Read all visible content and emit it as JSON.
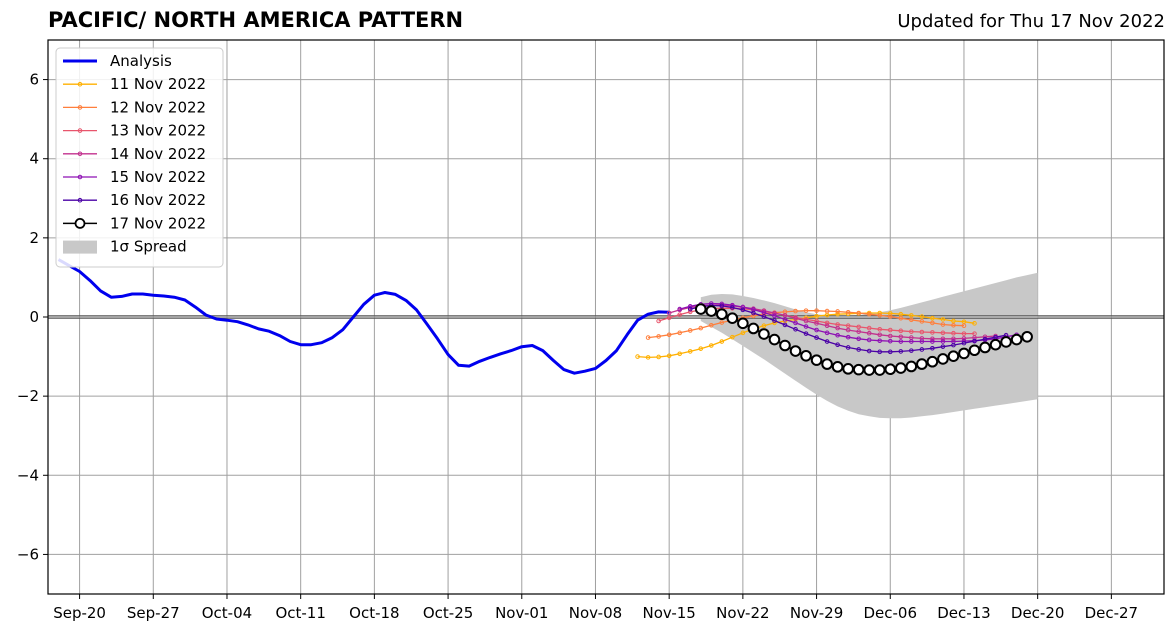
{
  "title": "PACIFIC/ NORTH AMERICA PATTERN",
  "subtitle": "Updated for Thu 17 Nov 2022",
  "chart_data": {
    "type": "line",
    "x_axis": {
      "type": "date",
      "range": [
        "2022-09-17",
        "2023-01-01"
      ],
      "ticks": [
        {
          "date": "2022-09-20",
          "label": "Sep-20"
        },
        {
          "date": "2022-09-27",
          "label": "Sep-27"
        },
        {
          "date": "2022-10-04",
          "label": "Oct-04"
        },
        {
          "date": "2022-10-11",
          "label": "Oct-11"
        },
        {
          "date": "2022-10-18",
          "label": "Oct-18"
        },
        {
          "date": "2022-10-25",
          "label": "Oct-25"
        },
        {
          "date": "2022-11-01",
          "label": "Nov-01"
        },
        {
          "date": "2022-11-08",
          "label": "Nov-08"
        },
        {
          "date": "2022-11-15",
          "label": "Nov-15"
        },
        {
          "date": "2022-11-22",
          "label": "Nov-22"
        },
        {
          "date": "2022-11-29",
          "label": "Nov-29"
        },
        {
          "date": "2022-12-06",
          "label": "Dec-06"
        },
        {
          "date": "2022-12-13",
          "label": "Dec-13"
        },
        {
          "date": "2022-12-20",
          "label": "Dec-20"
        },
        {
          "date": "2022-12-27",
          "label": "Dec-27"
        }
      ]
    },
    "y_axis": {
      "range": [
        -7,
        7
      ],
      "ticks": [
        {
          "value": 6,
          "label": "6"
        },
        {
          "value": 4,
          "label": "4"
        },
        {
          "value": 2,
          "label": "2"
        },
        {
          "value": 0,
          "label": "0"
        },
        {
          "value": -2,
          "label": "−2"
        },
        {
          "value": -4,
          "label": "−4"
        },
        {
          "value": -6,
          "label": "−6"
        }
      ]
    },
    "grid": true,
    "zero_line": true,
    "legend_position": "top-left",
    "analysis": {
      "name": "Analysis",
      "color": "#0000ee",
      "start_date": "2022-09-18",
      "values": [
        1.45,
        1.3,
        1.15,
        0.92,
        0.66,
        0.5,
        0.52,
        0.58,
        0.58,
        0.55,
        0.53,
        0.5,
        0.43,
        0.25,
        0.05,
        -0.05,
        -0.08,
        -0.12,
        -0.2,
        -0.3,
        -0.36,
        -0.47,
        -0.62,
        -0.7,
        -0.7,
        -0.65,
        -0.52,
        -0.32,
        0.0,
        0.32,
        0.55,
        0.62,
        0.57,
        0.42,
        0.18,
        -0.18,
        -0.55,
        -0.95,
        -1.22,
        -1.24,
        -1.12,
        -1.02,
        -0.93,
        -0.85,
        -0.75,
        -0.72,
        -0.85,
        -1.1,
        -1.33,
        -1.42,
        -1.37,
        -1.3,
        -1.1,
        -0.85,
        -0.45,
        -0.08,
        0.07,
        0.13,
        0.12
      ]
    },
    "forecasts": [
      {
        "name": "11 Nov 2022",
        "color": "#ffb000",
        "start_date": "2022-11-12",
        "values": [
          -1.0,
          -1.02,
          -1.01,
          -0.98,
          -0.93,
          -0.87,
          -0.8,
          -0.72,
          -0.62,
          -0.51,
          -0.4,
          -0.3,
          -0.22,
          -0.15,
          -0.1,
          -0.06,
          -0.02,
          0.02,
          0.05,
          0.07,
          0.08,
          0.09,
          0.1,
          0.1,
          0.09,
          0.07,
          0.04,
          0.01,
          -0.03,
          -0.06,
          -0.1,
          -0.12,
          -0.16
        ]
      },
      {
        "name": "12 Nov 2022",
        "color": "#ff7f3c",
        "start_date": "2022-11-13",
        "values": [
          -0.52,
          -0.49,
          -0.45,
          -0.4,
          -0.34,
          -0.28,
          -0.21,
          -0.14,
          -0.08,
          -0.02,
          0.03,
          0.07,
          0.11,
          0.13,
          0.15,
          0.16,
          0.16,
          0.15,
          0.14,
          0.12,
          0.1,
          0.07,
          0.04,
          0.01,
          -0.03,
          -0.07,
          -0.11,
          -0.15,
          -0.19,
          -0.21,
          -0.22
        ]
      },
      {
        "name": "13 Nov 2022",
        "color": "#e8556c",
        "start_date": "2022-11-14",
        "values": [
          -0.1,
          -0.02,
          0.06,
          0.13,
          0.18,
          0.21,
          0.22,
          0.22,
          0.21,
          0.18,
          0.14,
          0.09,
          0.04,
          -0.01,
          -0.06,
          -0.1,
          -0.15,
          -0.19,
          -0.22,
          -0.25,
          -0.28,
          -0.31,
          -0.33,
          -0.35,
          -0.37,
          -0.38,
          -0.39,
          -0.4,
          -0.41,
          -0.42,
          -0.42
        ]
      },
      {
        "name": "14 Nov 2022",
        "color": "#c2318e",
        "start_date": "2022-11-15",
        "values": [
          0.1,
          0.18,
          0.24,
          0.28,
          0.3,
          0.3,
          0.28,
          0.25,
          0.21,
          0.16,
          0.1,
          0.04,
          -0.03,
          -0.1,
          -0.16,
          -0.22,
          -0.28,
          -0.33,
          -0.37,
          -0.41,
          -0.45,
          -0.48,
          -0.5,
          -0.52,
          -0.54,
          -0.55,
          -0.55,
          -0.55,
          -0.54,
          -0.52,
          -0.5,
          -0.48
        ]
      },
      {
        "name": "15 Nov 2022",
        "color": "#8e10b4",
        "start_date": "2022-11-16",
        "values": [
          0.2,
          0.27,
          0.32,
          0.34,
          0.33,
          0.3,
          0.25,
          0.19,
          0.11,
          0.03,
          -0.06,
          -0.15,
          -0.24,
          -0.33,
          -0.4,
          -0.46,
          -0.51,
          -0.55,
          -0.58,
          -0.6,
          -0.61,
          -0.62,
          -0.62,
          -0.62,
          -0.62,
          -0.62,
          -0.62,
          -0.61,
          -0.6,
          -0.58,
          -0.55,
          -0.5,
          -0.45
        ]
      },
      {
        "name": "16 Nov 2022",
        "color": "#4a00a6",
        "start_date": "2022-11-17",
        "values": [
          0.2,
          0.26,
          0.29,
          0.28,
          0.24,
          0.18,
          0.1,
          0.01,
          -0.09,
          -0.2,
          -0.31,
          -0.42,
          -0.52,
          -0.62,
          -0.7,
          -0.77,
          -0.82,
          -0.86,
          -0.88,
          -0.88,
          -0.87,
          -0.85,
          -0.82,
          -0.79,
          -0.75,
          -0.71,
          -0.66,
          -0.61,
          -0.56,
          -0.51,
          -0.46
        ]
      },
      {
        "name": "17 Nov 2022",
        "color": "#000000",
        "start_date": "2022-11-18",
        "values": [
          0.2,
          0.15,
          0.07,
          -0.03,
          -0.16,
          -0.29,
          -0.43,
          -0.57,
          -0.72,
          -0.86,
          -0.98,
          -1.09,
          -1.19,
          -1.26,
          -1.31,
          -1.33,
          -1.34,
          -1.34,
          -1.32,
          -1.29,
          -1.25,
          -1.19,
          -1.13,
          -1.06,
          -0.99,
          -0.92,
          -0.84,
          -0.77,
          -0.7,
          -0.63,
          -0.57,
          -0.5
        ]
      }
    ],
    "spread": {
      "name": "1σ Spread",
      "color": "#c8c8c8",
      "start_date": "2022-11-18",
      "upper": [
        0.5,
        0.56,
        0.58,
        0.57,
        0.53,
        0.48,
        0.42,
        0.35,
        0.27,
        0.19,
        0.12,
        0.07,
        0.04,
        0.03,
        0.03,
        0.05,
        0.08,
        0.12,
        0.17,
        0.23,
        0.3,
        0.37,
        0.44,
        0.51,
        0.58,
        0.65,
        0.72,
        0.79,
        0.86,
        0.93,
        1.0,
        1.06,
        1.12
      ],
      "lower": [
        -0.1,
        -0.25,
        -0.4,
        -0.56,
        -0.73,
        -0.9,
        -1.07,
        -1.25,
        -1.43,
        -1.61,
        -1.79,
        -1.96,
        -2.12,
        -2.26,
        -2.37,
        -2.46,
        -2.51,
        -2.55,
        -2.56,
        -2.56,
        -2.54,
        -2.51,
        -2.48,
        -2.44,
        -2.4,
        -2.36,
        -2.32,
        -2.28,
        -2.24,
        -2.2,
        -2.16,
        -2.12,
        -2.08
      ]
    }
  }
}
